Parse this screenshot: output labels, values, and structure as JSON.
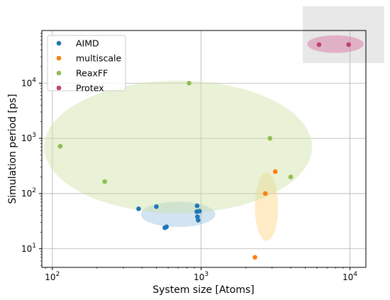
{
  "chart_data": {
    "type": "scatter",
    "xlabel": "System size [Atoms]",
    "ylabel": "Simulation period [ps]",
    "xscale": "log",
    "yscale": "log",
    "xlim": [
      85,
      12800
    ],
    "ylim": [
      4.6,
      90000
    ],
    "xticks": [
      {
        "value": 100,
        "base": "10",
        "exp": "2"
      },
      {
        "value": 1000,
        "base": "10",
        "exp": "3"
      },
      {
        "value": 10000,
        "base": "10",
        "exp": "4"
      }
    ],
    "yticks": [
      {
        "value": 10,
        "base": "10",
        "exp": "1"
      },
      {
        "value": 100,
        "base": "10",
        "exp": "2"
      },
      {
        "value": 1000,
        "base": "10",
        "exp": "3"
      },
      {
        "value": 10000,
        "base": "10",
        "exp": "4"
      }
    ],
    "grid": true,
    "legend_position": "top-left",
    "series": [
      {
        "name": "AIMD",
        "color": "#1f77b4",
        "points": [
          [
            380,
            53
          ],
          [
            500,
            58
          ],
          [
            570,
            24
          ],
          [
            585,
            25
          ],
          [
            940,
            60
          ],
          [
            935,
            47
          ],
          [
            975,
            48
          ],
          [
            945,
            38
          ],
          [
            955,
            33
          ]
        ]
      },
      {
        "name": "multiscale",
        "color": "#ff7f0e",
        "points": [
          [
            2300,
            7
          ],
          [
            2700,
            100
          ],
          [
            3150,
            250
          ]
        ]
      },
      {
        "name": "ReaxFF",
        "color": "#8fbf4f",
        "points": [
          [
            113,
            720
          ],
          [
            225,
            165
          ],
          [
            830,
            10000
          ],
          [
            2900,
            1000
          ],
          [
            4000,
            200
          ]
        ]
      },
      {
        "name": "Protex",
        "color": "#c0426b",
        "points": [
          [
            6200,
            50000
          ],
          [
            9800,
            50000
          ]
        ]
      }
    ],
    "regions": [
      {
        "series": "AIMD",
        "color": "#7fb0d8",
        "opacity": 0.35,
        "cx": 700,
        "cy": 42,
        "rx_dec": 0.25,
        "ry_dec": 0.23
      },
      {
        "series": "multiscale",
        "color": "#ffd27f",
        "opacity": 0.45,
        "cx": 2750,
        "cy": 58,
        "rx_dec": 0.078,
        "ry_dec": 0.62
      },
      {
        "series": "ReaxFF",
        "color": "#cfe3a7",
        "opacity": 0.45,
        "cx": 700,
        "cy": 700,
        "rx_dec": 0.9,
        "ry_dec": 1.2
      },
      {
        "series": "Protex",
        "color": "#d883a8",
        "opacity": 0.55,
        "cx": 8000,
        "cy": 51000,
        "rx_dec": 0.19,
        "ry_dec": 0.16
      }
    ]
  }
}
